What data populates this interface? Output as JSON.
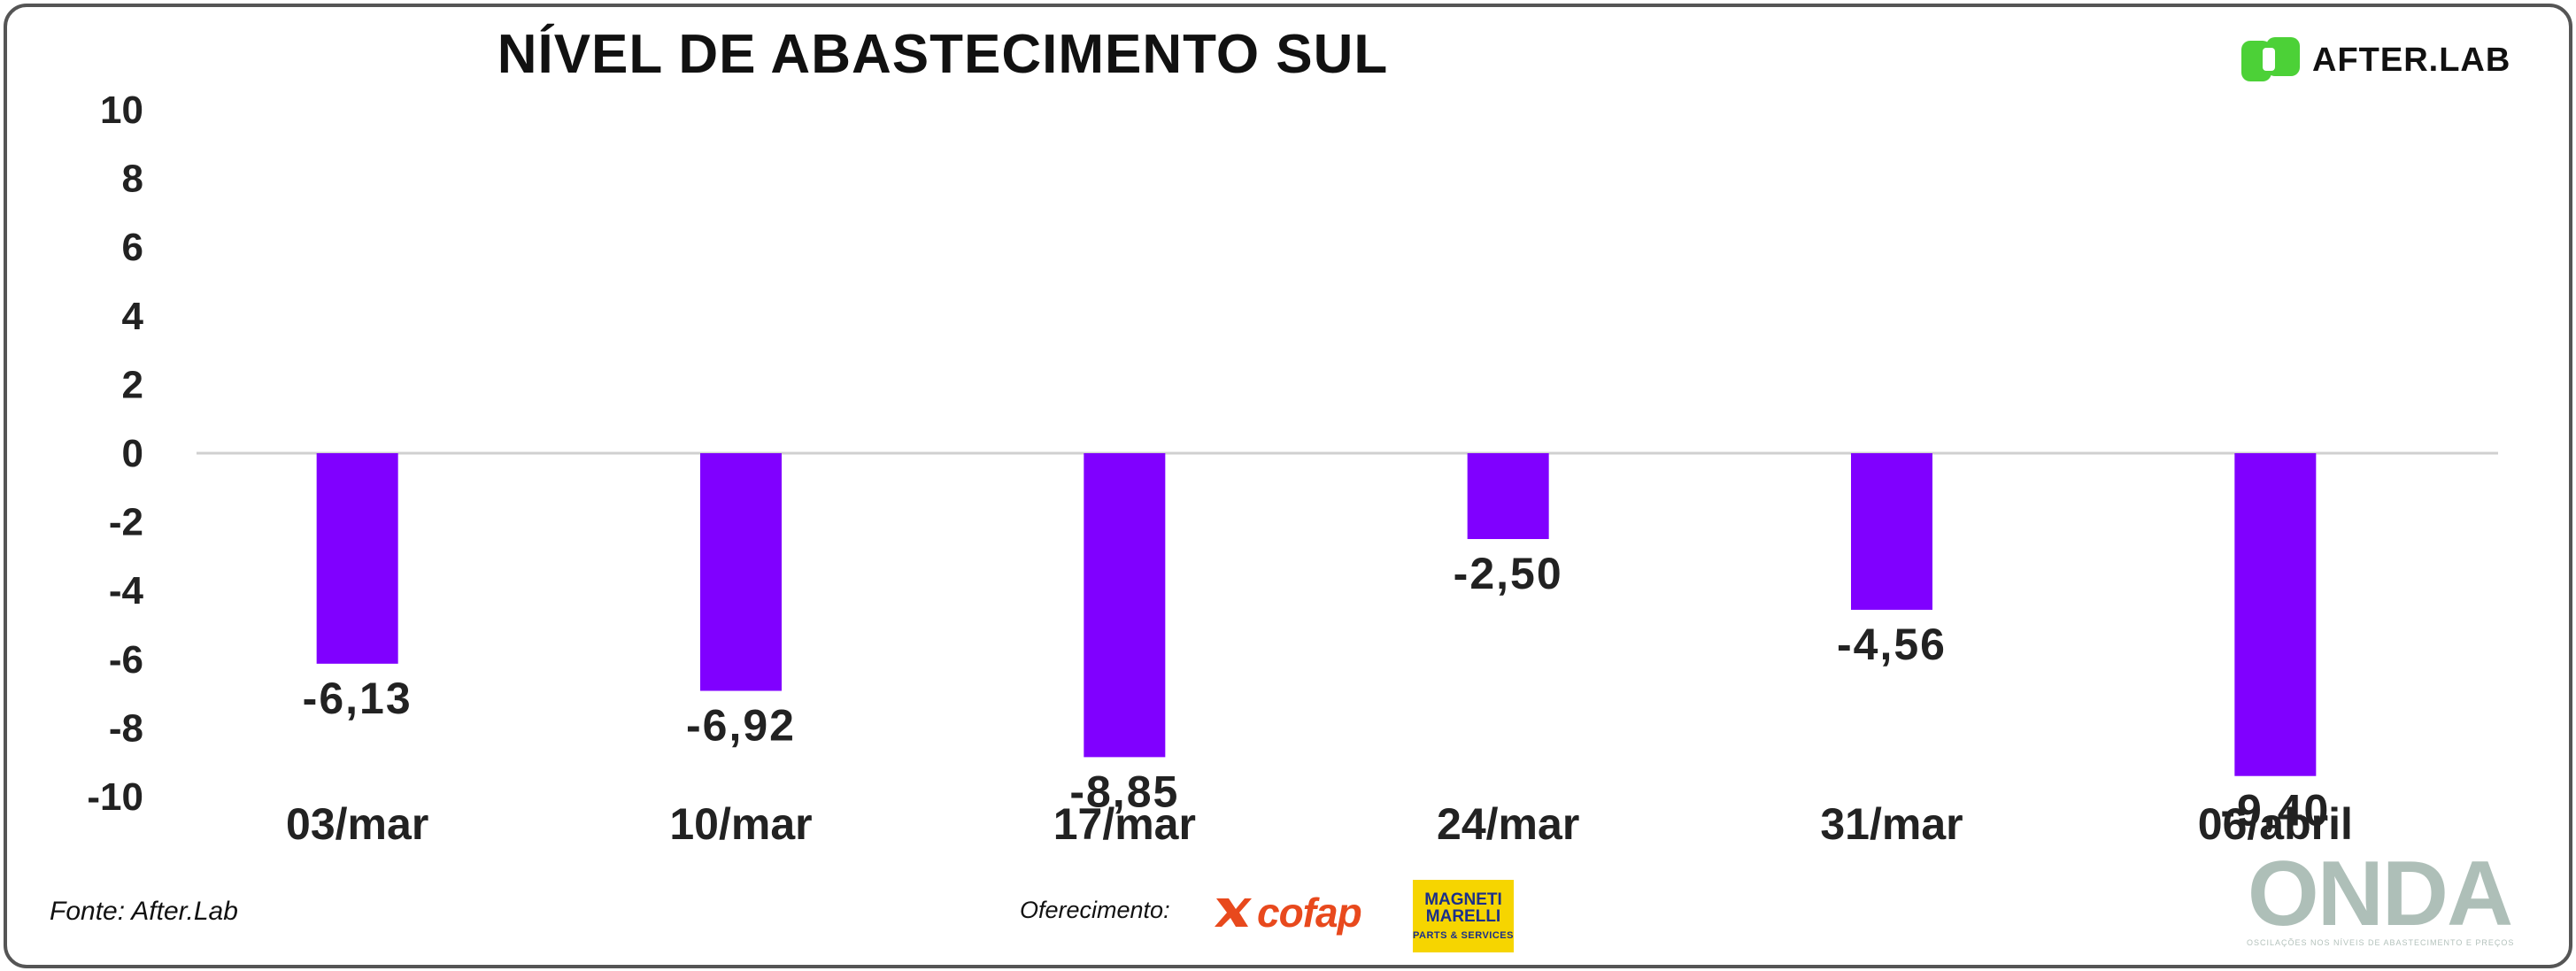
{
  "chart_data": {
    "type": "bar",
    "title": "NÍVEL DE ABASTECIMENTO SUL",
    "categories": [
      "03/mar",
      "10/mar",
      "17/mar",
      "24/mar",
      "31/mar",
      "06/abril"
    ],
    "values": [
      -6.13,
      -6.92,
      -8.85,
      -2.5,
      -4.56,
      -9.4
    ],
    "value_labels": [
      "-6,13",
      "-6,92",
      "-8,85",
      "-2,50",
      "-4,56",
      "-9,40"
    ],
    "yticks": [
      "10",
      "8",
      "6",
      "4",
      "2",
      "0",
      "-2",
      "-4",
      "-6",
      "-8",
      "-10"
    ],
    "ylim": [
      -10,
      10
    ],
    "xlabel": "",
    "ylabel": "",
    "grid": false,
    "bar_color": "#8000ff",
    "zero_line_color": "#d0d0d0"
  },
  "brand": {
    "logo_text": "AFTER.LAB",
    "logo_color": "#4cd137"
  },
  "footer": {
    "source": "Fonte: After.Lab",
    "offer_label": "Oferecimento:",
    "sponsor1": "cofap",
    "sponsor1_color": "#e8491d",
    "sponsor2_top": "MAGNETI MARELLI",
    "sponsor2_bottom": "PARTS & SERVICES",
    "sponsor2_color": "#f6d500",
    "onda_word": "ONDA",
    "onda_sub": "OSCILAÇÕES NOS NÍVEIS DE ABASTECIMENTO E PREÇOS"
  }
}
